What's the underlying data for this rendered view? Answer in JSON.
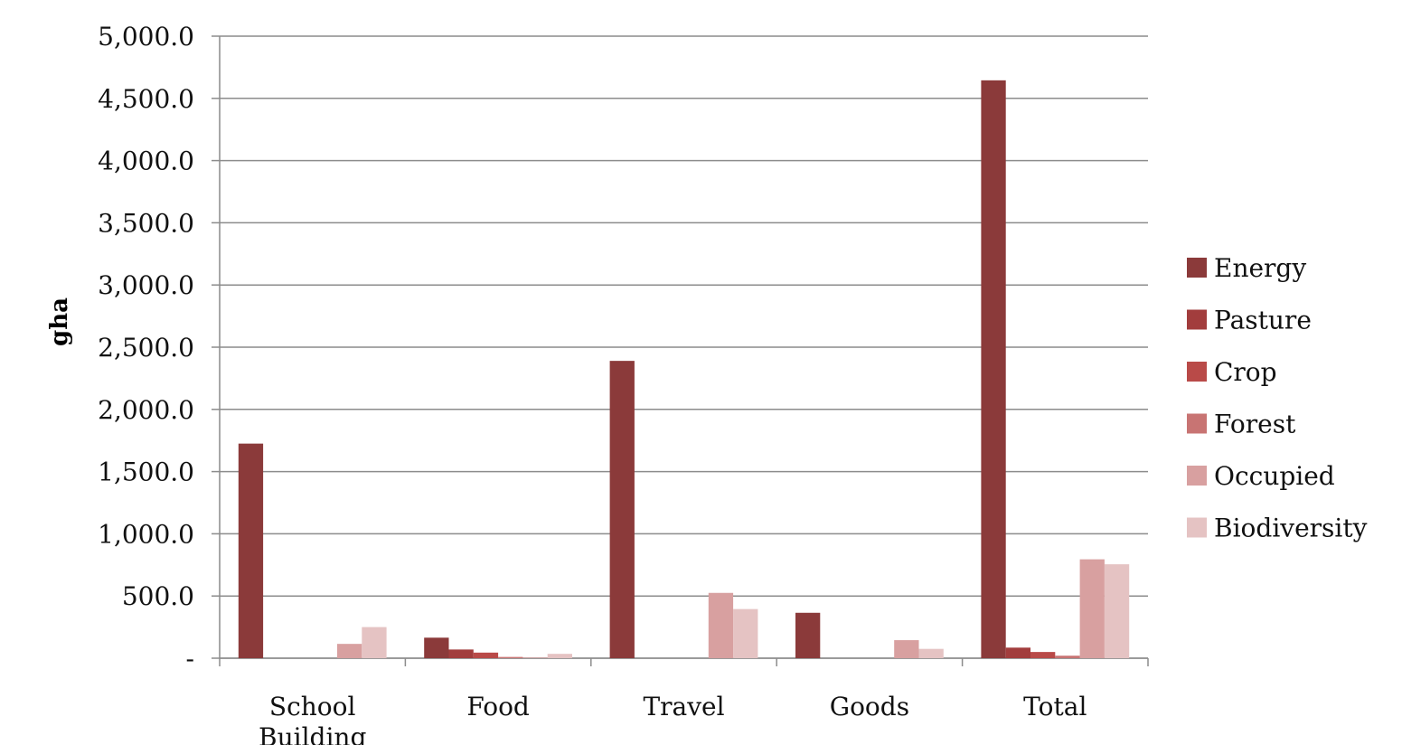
{
  "chart_data": {
    "type": "bar",
    "title": "",
    "xlabel": "",
    "ylabel": "gha",
    "ylim": [
      0,
      5000
    ],
    "yticks": [
      0,
      500,
      1000,
      1500,
      2000,
      2500,
      3000,
      3500,
      4000,
      4500,
      5000
    ],
    "ytick_labels": [
      "-",
      "500.0",
      "1,000.0",
      "1,500.0",
      "2,000.0",
      "2,500.0",
      "3,000.0",
      "3,500.0",
      "4,000.0",
      "4,500.0",
      "5,000.0"
    ],
    "categories": [
      "School Building",
      "Food",
      "Travel",
      "Goods",
      "Total"
    ],
    "grid": true,
    "legend_position": "right",
    "series": [
      {
        "name": "Energy",
        "color": "#8B3A3A",
        "values": [
          1725,
          165,
          2390,
          365,
          4645
        ]
      },
      {
        "name": "Pasture",
        "color": "#A23D3D",
        "values": [
          0,
          70,
          0,
          0,
          85
        ]
      },
      {
        "name": "Crop",
        "color": "#B94A48",
        "values": [
          0,
          45,
          0,
          0,
          50
        ]
      },
      {
        "name": "Forest",
        "color": "#C87473",
        "values": [
          0,
          10,
          0,
          0,
          20
        ]
      },
      {
        "name": "Occupied",
        "color": "#D8A0A0",
        "values": [
          115,
          5,
          525,
          145,
          795
        ]
      },
      {
        "name": "Biodiversity",
        "color": "#E5C3C3",
        "values": [
          250,
          35,
          395,
          75,
          755
        ]
      }
    ]
  }
}
